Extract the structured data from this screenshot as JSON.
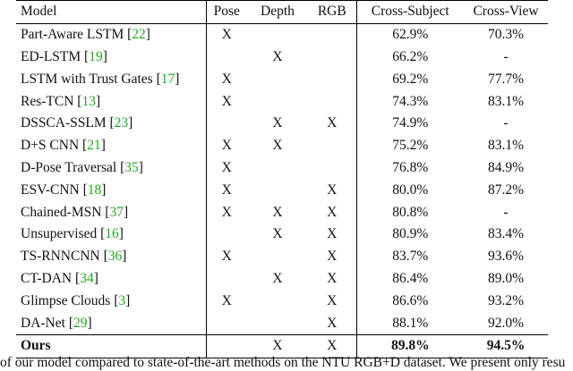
{
  "headers": [
    "Model",
    "Pose",
    "Depth",
    "RGB",
    "Cross-Subject",
    "Cross-View"
  ],
  "rows": [
    {
      "model": "Part-Aware LSTM",
      "ref": "22",
      "pose": "X",
      "depth": "",
      "rgb": "",
      "cs": "62.9%",
      "cv": "70.3%"
    },
    {
      "model": "ED-LSTM",
      "ref": "19",
      "pose": "",
      "depth": "X",
      "rgb": "",
      "cs": "66.2%",
      "cv": "-"
    },
    {
      "model": "LSTM with Trust Gates",
      "ref": "17",
      "pose": "X",
      "depth": "",
      "rgb": "",
      "cs": "69.2%",
      "cv": "77.7%"
    },
    {
      "model": "Res-TCN",
      "ref": "13",
      "pose": "X",
      "depth": "",
      "rgb": "",
      "cs": "74.3%",
      "cv": "83.1%"
    },
    {
      "model": "DSSCA-SSLM",
      "ref": "23",
      "pose": "",
      "depth": "X",
      "rgb": "X",
      "cs": "74.9%",
      "cv": "-"
    },
    {
      "model": "D+S CNN",
      "ref": "21",
      "pose": "X",
      "depth": "X",
      "rgb": "",
      "cs": "75.2%",
      "cv": "83.1%"
    },
    {
      "model": "D-Pose Traversal",
      "ref": "35",
      "pose": "X",
      "depth": "",
      "rgb": "",
      "cs": "76.8%",
      "cv": "84.9%"
    },
    {
      "model": "ESV-CNN",
      "ref": "18",
      "pose": "X",
      "depth": "",
      "rgb": "X",
      "cs": "80.0%",
      "cv": "87.2%"
    },
    {
      "model": "Chained-MSN",
      "ref": "37",
      "pose": "X",
      "depth": "X",
      "rgb": "X",
      "cs": "80.8%",
      "cv": "-"
    },
    {
      "model": "Unsupervised",
      "ref": "16",
      "pose": "",
      "depth": "X",
      "rgb": "X",
      "cs": "80.9%",
      "cv": "83.4%"
    },
    {
      "model": "TS-RNNCNN",
      "ref": "36",
      "pose": "X",
      "depth": "",
      "rgb": "X",
      "cs": "83.7%",
      "cv": "93.6%"
    },
    {
      "model": "CT-DAN",
      "ref": "34",
      "pose": "",
      "depth": "X",
      "rgb": "X",
      "cs": "86.4%",
      "cv": "89.0%"
    },
    {
      "model": "Glimpse Clouds",
      "ref": "3",
      "pose": "X",
      "depth": "",
      "rgb": "X",
      "cs": "86.6%",
      "cv": "93.2%"
    },
    {
      "model": "DA-Net",
      "ref": "29",
      "pose": "",
      "depth": "",
      "rgb": "X",
      "cs": "88.1%",
      "cv": "92.0%"
    }
  ],
  "ours": {
    "model": "Ours",
    "pose": "",
    "depth": "X",
    "rgb": "X",
    "cs": "89.8%",
    "cv": "94.5%"
  },
  "caption": "of our model compared to state-of-the-art methods on the NTU RGB+D dataset. We present only resu"
}
